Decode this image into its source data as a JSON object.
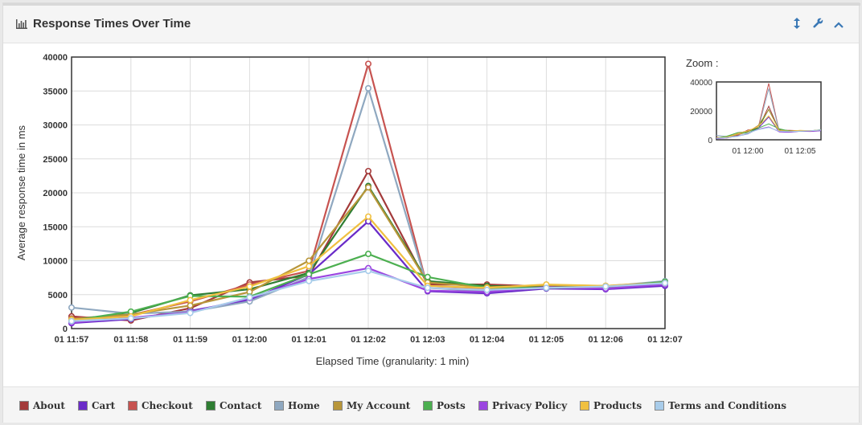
{
  "panel": {
    "title": "Response Times Over Time",
    "tools": [
      {
        "name": "vertical-resize-icon",
        "glyph": "↕"
      },
      {
        "name": "wrench-icon",
        "glyph": "🔧"
      },
      {
        "name": "chevron-up-icon",
        "glyph": "⌃"
      }
    ]
  },
  "zoom": {
    "label": "Zoom :",
    "y_ticks": [
      "40000",
      "20000",
      "0"
    ],
    "x_ticks": [
      "01 12:00",
      "01 12:05"
    ]
  },
  "chart_data": {
    "type": "line",
    "xlabel": "Elapsed Time (granularity: 1 min)",
    "ylabel": "Average response time in ms",
    "ylim": [
      0,
      40000
    ],
    "y_ticks": [
      0,
      5000,
      10000,
      15000,
      20000,
      25000,
      30000,
      35000,
      40000
    ],
    "categories": [
      "01 11:57",
      "01 11:58",
      "01 11:59",
      "01 12:00",
      "01 12:01",
      "01 12:02",
      "01 12:03",
      "01 12:04",
      "01 12:05",
      "01 12:06",
      "01 12:07"
    ],
    "grid": true,
    "legend_position": "bottom",
    "series": [
      {
        "name": "About",
        "color": "#a33a3a",
        "values": [
          1800,
          1200,
          3000,
          6800,
          7800,
          23200,
          6500,
          6500,
          6200,
          6000,
          6500
        ]
      },
      {
        "name": "Cart",
        "color": "#6a2bc8",
        "values": [
          800,
          1400,
          2600,
          4200,
          8000,
          15800,
          5500,
          5200,
          5900,
          5800,
          6300
        ]
      },
      {
        "name": "Checkout",
        "color": "#c75350",
        "values": [
          1500,
          2000,
          4000,
          6500,
          8500,
          39000,
          6000,
          5800,
          6200,
          6000,
          6600
        ]
      },
      {
        "name": "Contact",
        "color": "#2e7d32",
        "values": [
          1000,
          2300,
          4900,
          5800,
          8200,
          21000,
          7000,
          6300,
          6100,
          6200,
          6800
        ]
      },
      {
        "name": "Home",
        "color": "#8fa8c0",
        "values": [
          3100,
          2200,
          2500,
          4000,
          7600,
          35400,
          6000,
          5500,
          6000,
          6200,
          7000
        ]
      },
      {
        "name": "My Account",
        "color": "#b8963a",
        "values": [
          1400,
          2100,
          3400,
          5400,
          10000,
          20800,
          6800,
          6100,
          6400,
          6300,
          6800
        ]
      },
      {
        "name": "Posts",
        "color": "#4caf50",
        "values": [
          1200,
          2500,
          4800,
          4700,
          8000,
          11000,
          7600,
          6000,
          6000,
          6100,
          6900
        ]
      },
      {
        "name": "Privacy Policy",
        "color": "#9b45e0",
        "values": [
          900,
          1600,
          2400,
          4500,
          7300,
          8900,
          5600,
          5400,
          6100,
          5900,
          6500
        ]
      },
      {
        "name": "Products",
        "color": "#f0c040",
        "values": [
          1300,
          1800,
          4200,
          6200,
          9200,
          16500,
          6300,
          6000,
          6500,
          6300,
          6700
        ]
      },
      {
        "name": "Terms and Conditions",
        "color": "#a8ccea",
        "values": [
          1100,
          1500,
          2300,
          4600,
          7000,
          8500,
          6000,
          5700,
          6000,
          6200,
          6700
        ]
      }
    ]
  }
}
